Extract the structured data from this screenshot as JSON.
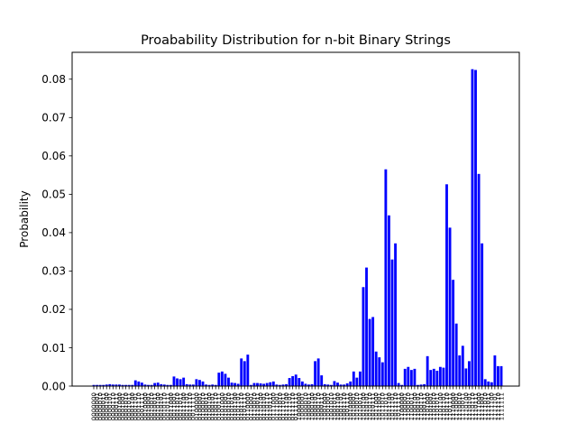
{
  "chart_data": {
    "type": "bar",
    "title": "Proabability Distribution for n-bit Binary Strings",
    "xlabel": "",
    "ylabel": "Probability",
    "ylim": [
      0,
      0.087
    ],
    "yticks": [
      "0.00",
      "0.01",
      "0.02",
      "0.03",
      "0.04",
      "0.05",
      "0.06",
      "0.07",
      "0.08"
    ],
    "ytick_values": [
      0,
      0.01,
      0.02,
      0.03,
      0.04,
      0.05,
      0.06,
      0.07,
      0.08
    ],
    "bar_color": "#0000ff",
    "grid": false,
    "categories": [
      "0000000",
      "0000001",
      "0000010",
      "0000011",
      "0000100",
      "0000101",
      "0000110",
      "0000111",
      "0001000",
      "0001001",
      "0001010",
      "0001011",
      "0001100",
      "0001101",
      "0001110",
      "0001111",
      "0010000",
      "0010001",
      "0010010",
      "0010011",
      "0010100",
      "0010101",
      "0010110",
      "0010111",
      "0011000",
      "0011001",
      "0011010",
      "0011011",
      "0011100",
      "0011101",
      "0011110",
      "0011111",
      "0100000",
      "0100001",
      "0100010",
      "0100011",
      "0100100",
      "0100101",
      "0100110",
      "0100111",
      "0101000",
      "0101001",
      "0101010",
      "0101011",
      "0101100",
      "0101101",
      "0101110",
      "0101111",
      "0110000",
      "0110001",
      "0110010",
      "0110011",
      "0110100",
      "0110101",
      "0110110",
      "0110111",
      "0111000",
      "0111001",
      "0111010",
      "0111011",
      "0111100",
      "0111101",
      "0111110",
      "0111111",
      "1000000",
      "1000001",
      "1000010",
      "1000011",
      "1000100",
      "1000101",
      "1000110",
      "1000111",
      "1001000",
      "1001001",
      "1001010",
      "1001011",
      "1001100",
      "1001101",
      "1001110",
      "1001111",
      "1010000",
      "1010001",
      "1010010",
      "1010011",
      "1010100",
      "1010101",
      "1010110",
      "1010111",
      "1011000",
      "1011001",
      "1011010",
      "1011011",
      "1011100",
      "1011101",
      "1011110",
      "1011111",
      "1100000",
      "1100001",
      "1100010",
      "1100011",
      "1100100",
      "1100101",
      "1100110",
      "1100111",
      "1101000",
      "1101001",
      "1101010",
      "1101011",
      "1101100",
      "1101101",
      "1101110",
      "1101111",
      "1110000",
      "1110001",
      "1110010",
      "1110011",
      "1110100",
      "1110101",
      "1110110",
      "1110111",
      "1111000",
      "1111001",
      "1111010",
      "1111011",
      "1111100",
      "1111101",
      "1111110",
      "1111111"
    ],
    "values": [
      0.0003,
      0.0003,
      0.0003,
      0.0003,
      0.0004,
      0.0005,
      0.0004,
      0.0004,
      0.0004,
      0.0003,
      0.0003,
      0.0003,
      0.0003,
      0.0015,
      0.0012,
      0.0009,
      0.0004,
      0.0003,
      0.0003,
      0.0008,
      0.0009,
      0.0005,
      0.0004,
      0.0003,
      0.0003,
      0.0025,
      0.002,
      0.0018,
      0.0022,
      0.0005,
      0.0004,
      0.0004,
      0.0018,
      0.0016,
      0.0012,
      0.0004,
      0.0003,
      0.0004,
      0.0003,
      0.0035,
      0.0038,
      0.0032,
      0.0022,
      0.0009,
      0.0008,
      0.0006,
      0.0072,
      0.0065,
      0.0082,
      0.0003,
      0.0008,
      0.0008,
      0.0007,
      0.0006,
      0.0008,
      0.001,
      0.0012,
      0.0004,
      0.0003,
      0.0004,
      0.0005,
      0.0021,
      0.0026,
      0.003,
      0.0021,
      0.0012,
      0.0006,
      0.0004,
      0.0005,
      0.0065,
      0.0072,
      0.0028,
      0.0005,
      0.0004,
      0.0003,
      0.0013,
      0.0009,
      0.0004,
      0.0004,
      0.0007,
      0.0012,
      0.0038,
      0.0022,
      0.0038,
      0.0258,
      0.0309,
      0.0175,
      0.018,
      0.009,
      0.0075,
      0.0062,
      0.0565,
      0.0445,
      0.033,
      0.0372,
      0.0008,
      0.0003,
      0.0045,
      0.005,
      0.0042,
      0.0045,
      0.0003,
      0.0004,
      0.0005,
      0.0078,
      0.0042,
      0.0045,
      0.004,
      0.005,
      0.0048,
      0.0526,
      0.0413,
      0.0277,
      0.0163,
      0.008,
      0.0105,
      0.0046,
      0.0065,
      0.0826,
      0.0824,
      0.0553,
      0.0372,
      0.0018,
      0.0012,
      0.001,
      0.008,
      0.0052,
      0.0052
    ]
  }
}
